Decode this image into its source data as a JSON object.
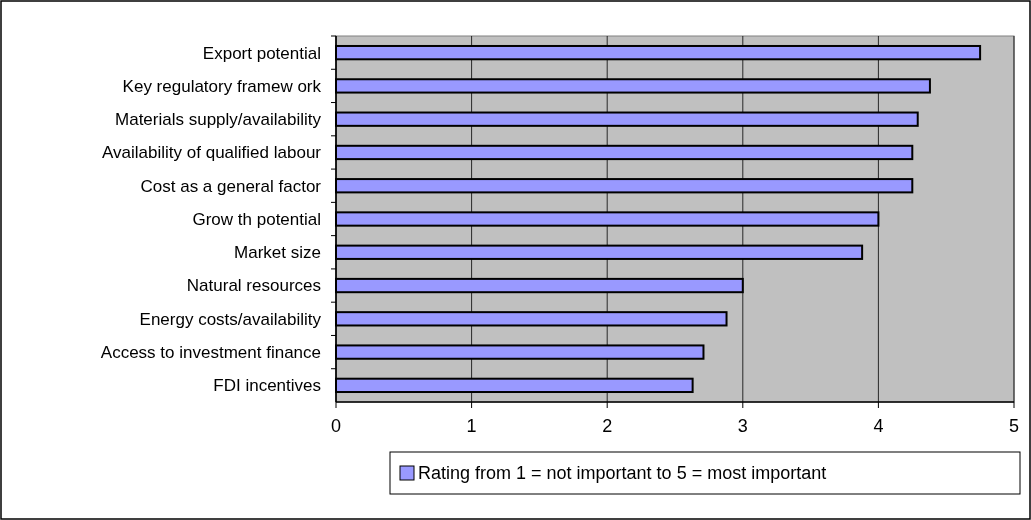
{
  "chart_data": {
    "type": "bar",
    "orientation": "horizontal",
    "categories": [
      "Export potential",
      "Key regulatory framew ork",
      "Materials supply/availability",
      "Availability of qualified labour",
      "Cost as a general factor",
      "Grow th potential",
      "Market size",
      "Natural resources",
      "Energy costs/availability",
      "Access to investment finance",
      "FDI incentives"
    ],
    "series": [
      {
        "name": "Rating from 1 = not important to 5 = most important",
        "color": "#9999ff",
        "values": [
          4.75,
          4.38,
          4.29,
          4.25,
          4.25,
          4.0,
          3.88,
          3.0,
          2.88,
          2.71,
          2.63
        ]
      }
    ],
    "xlim": [
      0,
      5
    ],
    "xticks": [
      0,
      1,
      2,
      3,
      4,
      5
    ],
    "grid": "x",
    "legend": "bottom"
  }
}
